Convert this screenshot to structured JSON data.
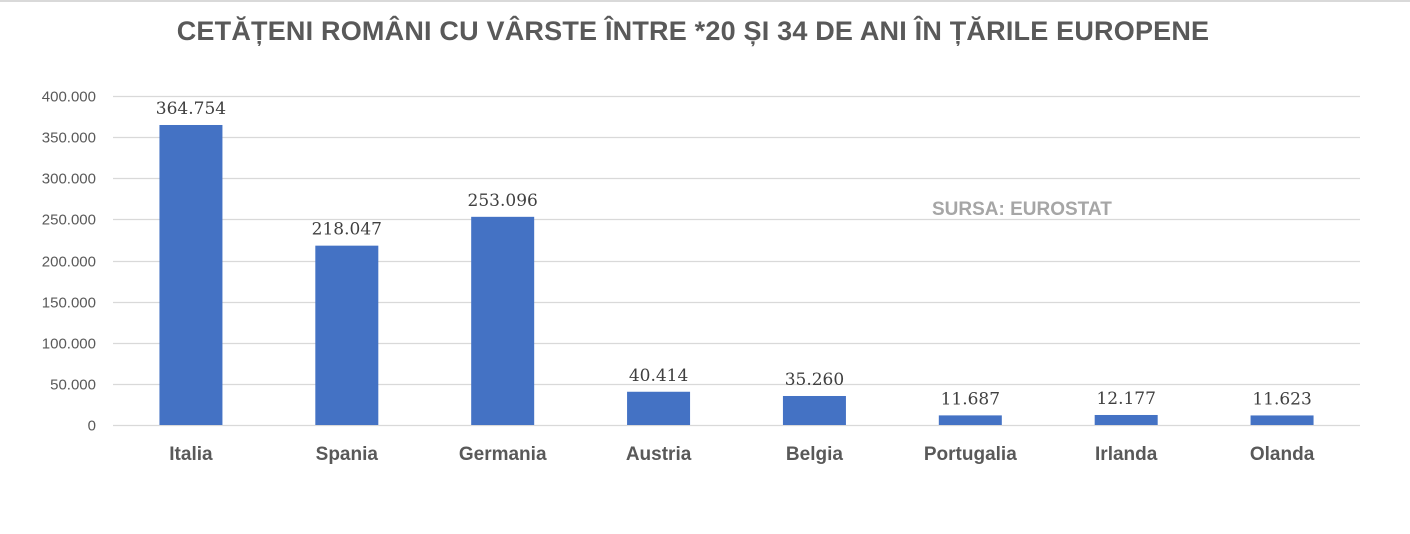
{
  "chart_data": {
    "type": "bar",
    "title": "CETĂȚENI ROMÂNI CU VÂRSTE ÎNTRE *20 ȘI 34 DE ANI ÎN ȚĂRILE EUROPENE",
    "annotation": "SURSA: EUROSTAT",
    "categories": [
      "Italia",
      "Spania",
      "Germania",
      "Austria",
      "Belgia",
      "Portugalia",
      "Irlanda",
      "Olanda"
    ],
    "values": [
      364754,
      218047,
      253096,
      40414,
      35260,
      11687,
      12177,
      11623
    ],
    "value_labels": [
      "364.754",
      "218.047",
      "253.096",
      "40.414",
      "35.260",
      "11.687",
      "12.177",
      "11.623"
    ],
    "y_ticks": [
      0,
      50000,
      100000,
      150000,
      200000,
      250000,
      300000,
      350000,
      400000
    ],
    "y_tick_labels": [
      "0",
      "50.000",
      "100.000",
      "150.000",
      "200.000",
      "250.000",
      "300.000",
      "350.000",
      "400.000"
    ],
    "ylim": [
      0,
      400000
    ],
    "xlabel": "",
    "ylabel": "",
    "grid": true,
    "bar_color": "#4472c4",
    "grid_color": "#d9d9d9"
  }
}
